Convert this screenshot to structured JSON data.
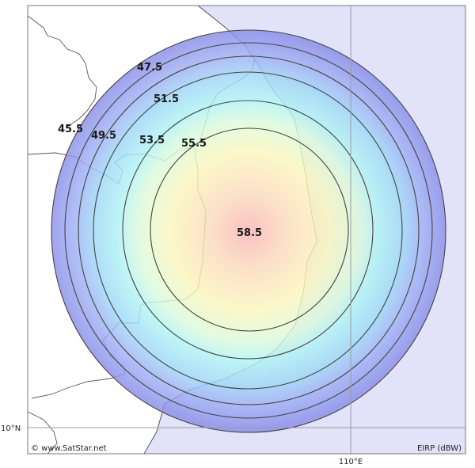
{
  "map": {
    "colors": {
      "sea": "#e2e2f8",
      "land": "#ffffff",
      "coast": "#555555",
      "contour": "#444444",
      "grid": "#9a9aa8",
      "border": "#777777"
    },
    "contours": [
      {
        "value": 45.5,
        "label": "45.5"
      },
      {
        "value": 47.5,
        "label": "47.5"
      },
      {
        "value": 49.5,
        "label": "49.5"
      },
      {
        "value": 51.5,
        "label": "51.5"
      },
      {
        "value": 53.5,
        "label": "53.5"
      },
      {
        "value": 55.5,
        "label": "55.5"
      }
    ],
    "peak": {
      "value": 58.5,
      "label": "58.5"
    },
    "lat_label": "10°N",
    "lon_label": "110°E",
    "copyright": "© www.SatStar.net",
    "legend_unit": "EIRP (dBW)"
  }
}
